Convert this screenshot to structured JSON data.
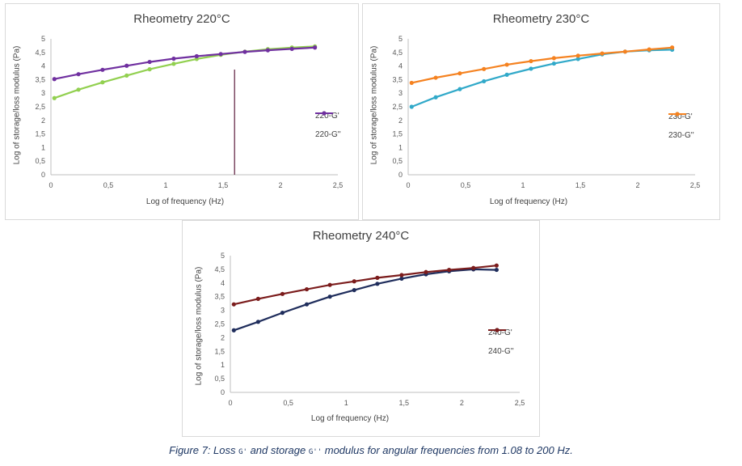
{
  "chart_data": [
    {
      "type": "line",
      "title": "Rheometry 220°C",
      "xlabel": "Log of frequency (Hz)",
      "ylabel": "Log of storage/loss modulus (Pa)",
      "xlim": [
        0,
        2.5
      ],
      "ylim": [
        0,
        5
      ],
      "x_ticks": [
        "0",
        "0,5",
        "1",
        "1,5",
        "2",
        "2,5"
      ],
      "y_ticks": [
        "0",
        "0,5",
        "1",
        "1,5",
        "2",
        "2,5",
        "3",
        "3,5",
        "4",
        "4,5",
        "5"
      ],
      "grid": false,
      "legend_position": "right",
      "annotation": {
        "type": "vertical-line",
        "x": 1.6,
        "color": "#5b1a3a"
      },
      "series": [
        {
          "name": "220-G'",
          "color": "#92d050",
          "x": [
            0.03,
            0.24,
            0.45,
            0.66,
            0.86,
            1.07,
            1.27,
            1.48,
            1.69,
            1.89,
            2.1,
            2.3
          ],
          "y": [
            2.82,
            3.13,
            3.4,
            3.65,
            3.88,
            4.08,
            4.26,
            4.41,
            4.53,
            4.62,
            4.68,
            4.72
          ]
        },
        {
          "name": "220-G''",
          "color": "#7030a0",
          "x": [
            0.03,
            0.24,
            0.45,
            0.66,
            0.86,
            1.07,
            1.27,
            1.48,
            1.69,
            1.89,
            2.1,
            2.3
          ],
          "y": [
            3.52,
            3.7,
            3.86,
            4.01,
            4.15,
            4.27,
            4.36,
            4.44,
            4.52,
            4.58,
            4.63,
            4.68
          ]
        }
      ]
    },
    {
      "type": "line",
      "title": "Rheometry 230°C",
      "xlabel": "Log of frequency (Hz)",
      "ylabel": "Log of storage/loss modulus (Pa)",
      "xlim": [
        0,
        2.5
      ],
      "ylim": [
        0,
        5
      ],
      "x_ticks": [
        "0",
        "0,5",
        "1",
        "1,5",
        "2",
        "2,5"
      ],
      "y_ticks": [
        "0",
        "0,5",
        "1",
        "1,5",
        "2",
        "2,5",
        "3",
        "3,5",
        "4",
        "4,5",
        "5"
      ],
      "grid": false,
      "legend_position": "right",
      "series": [
        {
          "name": "230-G'",
          "color": "#31a9c9",
          "x": [
            0.03,
            0.24,
            0.45,
            0.66,
            0.86,
            1.07,
            1.27,
            1.48,
            1.69,
            1.89,
            2.1,
            2.3
          ],
          "y": [
            2.5,
            2.85,
            3.15,
            3.44,
            3.68,
            3.9,
            4.09,
            4.26,
            4.43,
            4.53,
            4.58,
            4.6
          ]
        },
        {
          "name": "230-G''",
          "color": "#f58220",
          "x": [
            0.03,
            0.24,
            0.45,
            0.66,
            0.86,
            1.07,
            1.27,
            1.48,
            1.69,
            1.89,
            2.1,
            2.3
          ],
          "y": [
            3.38,
            3.57,
            3.73,
            3.89,
            4.05,
            4.18,
            4.29,
            4.38,
            4.46,
            4.53,
            4.61,
            4.68
          ]
        }
      ]
    },
    {
      "type": "line",
      "title": "Rheometry 240°C",
      "xlabel": "Log of frequency (Hz)",
      "ylabel": "Log of storage/loss modulus (Pa)",
      "xlim": [
        0,
        2.5
      ],
      "ylim": [
        0,
        5
      ],
      "x_ticks": [
        "0",
        "0,5",
        "1",
        "1,5",
        "2",
        "2,5"
      ],
      "y_ticks": [
        "0",
        "0,5",
        "1",
        "1,5",
        "2",
        "2,5",
        "3",
        "3,5",
        "4",
        "4,5",
        "5"
      ],
      "grid": false,
      "legend_position": "right",
      "series": [
        {
          "name": "240-G'",
          "color": "#1f2d5c",
          "x": [
            0.03,
            0.24,
            0.45,
            0.66,
            0.86,
            1.07,
            1.27,
            1.48,
            1.69,
            1.89,
            2.1,
            2.3
          ],
          "y": [
            2.27,
            2.58,
            2.91,
            3.22,
            3.5,
            3.74,
            3.97,
            4.16,
            4.32,
            4.43,
            4.5,
            4.48
          ]
        },
        {
          "name": "240-G''",
          "color": "#7b1c1c",
          "x": [
            0.03,
            0.24,
            0.45,
            0.66,
            0.86,
            1.07,
            1.27,
            1.48,
            1.69,
            1.89,
            2.1,
            2.3
          ],
          "y": [
            3.22,
            3.42,
            3.6,
            3.77,
            3.93,
            4.06,
            4.19,
            4.29,
            4.4,
            4.48,
            4.55,
            4.64
          ]
        }
      ]
    }
  ],
  "caption": {
    "before": "Figure 7: Loss ",
    "g1": "G'",
    "middle": " and storage ",
    "g2": "G''",
    "after": " modulus for angular frequencies from 1.08 to 200 Hz."
  }
}
